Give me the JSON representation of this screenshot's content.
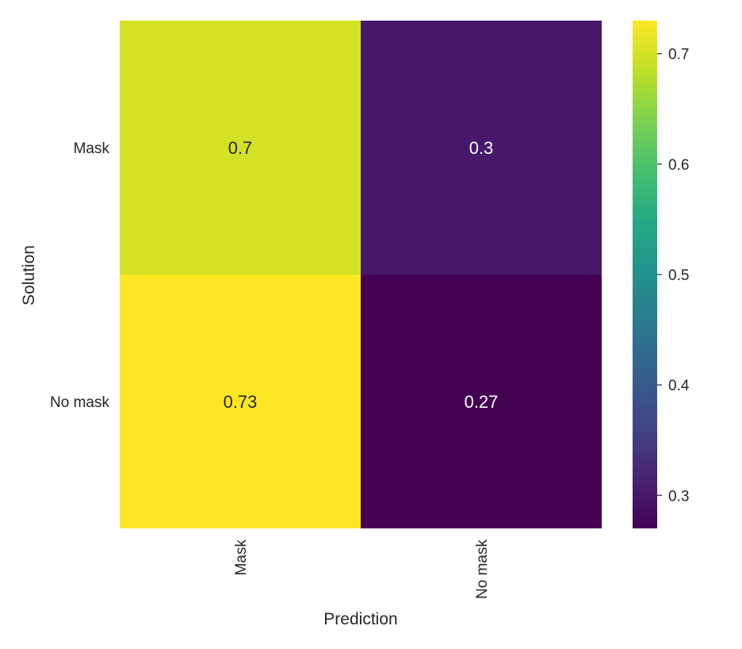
{
  "chart_data": {
    "type": "heatmap",
    "title": "",
    "xlabel": "Prediction",
    "ylabel": "Solution",
    "x_categories": [
      "Mask",
      "No mask"
    ],
    "y_categories": [
      "Mask",
      "No mask"
    ],
    "values": [
      [
        0.7,
        0.3
      ],
      [
        0.73,
        0.27
      ]
    ],
    "cell_labels": [
      [
        "0.7",
        "0.3"
      ],
      [
        "0.73",
        "0.27"
      ]
    ],
    "colormap": "viridis",
    "colorbar": {
      "range": [
        0.27,
        0.73
      ],
      "ticks": [
        0.3,
        0.4,
        0.5,
        0.6,
        0.7
      ],
      "tick_labels": [
        "0.3",
        "0.4",
        "0.5",
        "0.6",
        "0.7"
      ]
    },
    "annotation_colors": {
      "dark_text": "#262626",
      "light_text": "#ffffff"
    },
    "grid": false
  }
}
